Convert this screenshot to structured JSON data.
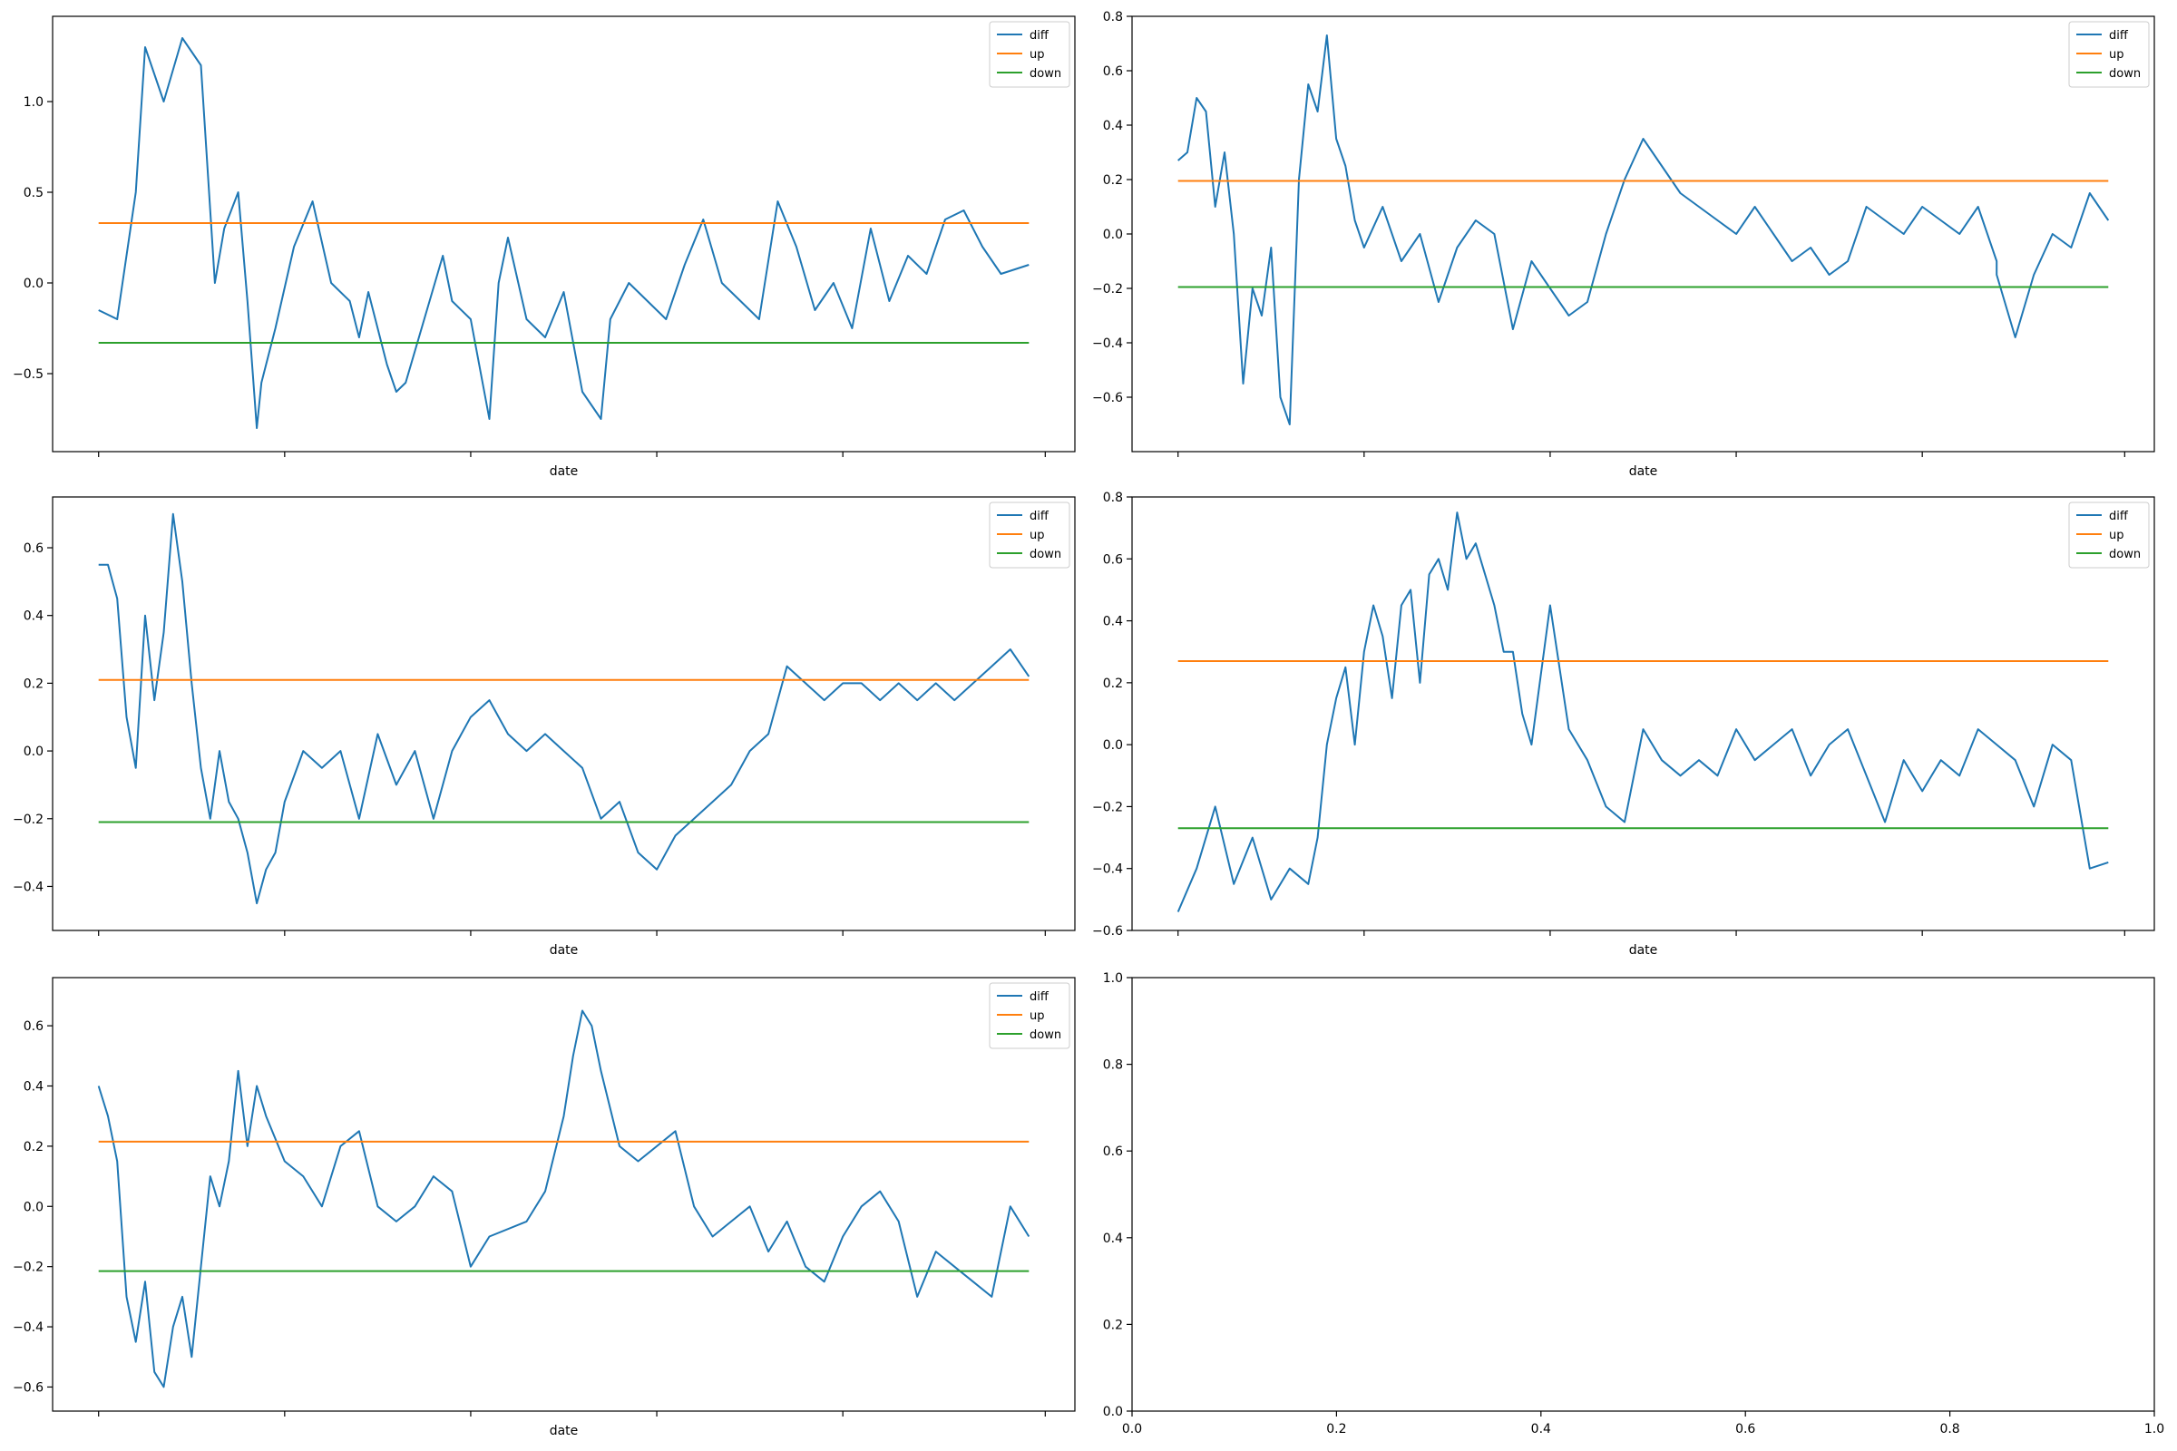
{
  "colors": {
    "diff": "#1f77b4",
    "up": "#ff7f0e",
    "down": "#2ca02c",
    "axis": "#000000",
    "background": "#ffffff"
  },
  "chart_data": [
    {
      "type": "line",
      "xlabel": "date",
      "ylabel": "",
      "ylim": [
        -0.93,
        1.47
      ],
      "yticks": [
        -0.5,
        0.0,
        0.5,
        1.0
      ],
      "ytick_labels": [
        "−0.5",
        "0.0",
        "0.5",
        "1.0"
      ],
      "xtick_count": 6,
      "legend": {
        "position": "upper right",
        "entries": [
          "diff",
          "up",
          "down"
        ]
      },
      "up": 0.33,
      "down": -0.33,
      "series": [
        {
          "name": "diff",
          "x": [
            0,
            0.02,
            0.04,
            0.05,
            0.07,
            0.09,
            0.11,
            0.125,
            0.135,
            0.15,
            0.16,
            0.17,
            0.175,
            0.19,
            0.21,
            0.23,
            0.25,
            0.27,
            0.28,
            0.29,
            0.31,
            0.32,
            0.33,
            0.35,
            0.37,
            0.38,
            0.4,
            0.42,
            0.43,
            0.44,
            0.46,
            0.48,
            0.5,
            0.52,
            0.54,
            0.55,
            0.57,
            0.59,
            0.61,
            0.63,
            0.65,
            0.67,
            0.69,
            0.71,
            0.73,
            0.75,
            0.77,
            0.79,
            0.81,
            0.83,
            0.85,
            0.87,
            0.89,
            0.91,
            0.93,
            0.95,
            0.97,
            1.0
          ],
          "values": [
            -0.15,
            -0.2,
            0.5,
            1.3,
            1.0,
            1.35,
            1.2,
            0.0,
            0.3,
            0.5,
            -0.1,
            -0.8,
            -0.55,
            -0.25,
            0.2,
            0.45,
            0.0,
            -0.1,
            -0.3,
            -0.05,
            -0.45,
            -0.6,
            -0.55,
            -0.2,
            0.15,
            -0.1,
            -0.2,
            -0.75,
            0.0,
            0.25,
            -0.2,
            -0.3,
            -0.05,
            -0.6,
            -0.75,
            -0.2,
            0.0,
            -0.1,
            -0.2,
            0.1,
            0.35,
            0.0,
            -0.1,
            -0.2,
            0.45,
            0.2,
            -0.15,
            0.0,
            -0.25,
            0.3,
            -0.1,
            0.15,
            0.05,
            0.35,
            0.4,
            0.2,
            0.05,
            0.1
          ]
        },
        {
          "name": "up",
          "values": [
            0.33,
            0.33
          ]
        },
        {
          "name": "down",
          "values": [
            -0.33,
            -0.33
          ]
        }
      ]
    },
    {
      "type": "line",
      "xlabel": "date",
      "ylabel": "",
      "ylim": [
        -0.8,
        0.8
      ],
      "yticks": [
        -0.6,
        -0.4,
        -0.2,
        0.0,
        0.2,
        0.4,
        0.6,
        0.8
      ],
      "ytick_labels": [
        "−0.6",
        "−0.4",
        "−0.2",
        "0.0",
        "0.2",
        "0.4",
        "0.6",
        "0.8"
      ],
      "xtick_count": 6,
      "legend": {
        "position": "upper right",
        "entries": [
          "diff",
          "up",
          "down"
        ]
      },
      "up": 0.195,
      "down": -0.195,
      "series": [
        {
          "name": "diff",
          "x": [
            0,
            0.01,
            0.02,
            0.03,
            0.04,
            0.05,
            0.06,
            0.07,
            0.08,
            0.09,
            0.1,
            0.11,
            0.12,
            0.13,
            0.14,
            0.15,
            0.16,
            0.17,
            0.18,
            0.19,
            0.2,
            0.22,
            0.24,
            0.26,
            0.28,
            0.3,
            0.32,
            0.34,
            0.36,
            0.38,
            0.4,
            0.42,
            0.44,
            0.46,
            0.48,
            0.5,
            0.52,
            0.54,
            0.56,
            0.58,
            0.6,
            0.62,
            0.64,
            0.66,
            0.68,
            0.7,
            0.72,
            0.74,
            0.76,
            0.78,
            0.8,
            0.82,
            0.84,
            0.86,
            0.88,
            0.88,
            0.9,
            0.92,
            0.94,
            0.96,
            0.98,
            1.0
          ],
          "values": [
            0.27,
            0.3,
            0.5,
            0.45,
            0.1,
            0.3,
            0.0,
            -0.55,
            -0.2,
            -0.3,
            -0.05,
            -0.6,
            -0.7,
            0.2,
            0.55,
            0.45,
            0.73,
            0.35,
            0.25,
            0.05,
            -0.05,
            0.1,
            -0.1,
            0.0,
            -0.25,
            -0.05,
            0.05,
            0.0,
            -0.35,
            -0.1,
            -0.2,
            -0.3,
            -0.25,
            0.0,
            0.2,
            0.35,
            0.25,
            0.15,
            0.1,
            0.05,
            0.0,
            0.1,
            0.0,
            -0.1,
            -0.05,
            -0.15,
            -0.1,
            0.1,
            0.05,
            0.0,
            0.1,
            0.05,
            0.0,
            0.1,
            -0.1,
            -0.15,
            -0.38,
            -0.15,
            0.0,
            -0.05,
            0.15,
            0.05
          ]
        },
        {
          "name": "up",
          "values": [
            0.195,
            0.195
          ]
        },
        {
          "name": "down",
          "values": [
            -0.195,
            -0.195
          ]
        }
      ]
    },
    {
      "type": "line",
      "xlabel": "date",
      "ylabel": "",
      "ylim": [
        -0.53,
        0.75
      ],
      "yticks": [
        -0.4,
        -0.2,
        0.0,
        0.2,
        0.4,
        0.6
      ],
      "ytick_labels": [
        "−0.4",
        "−0.2",
        "0.0",
        "0.2",
        "0.4",
        "0.6"
      ],
      "xtick_count": 6,
      "legend": {
        "position": "upper right",
        "entries": [
          "diff",
          "up",
          "down"
        ]
      },
      "up": 0.21,
      "down": -0.21,
      "series": [
        {
          "name": "diff",
          "x": [
            0,
            0.01,
            0.02,
            0.03,
            0.04,
            0.05,
            0.06,
            0.07,
            0.08,
            0.09,
            0.1,
            0.11,
            0.12,
            0.13,
            0.14,
            0.15,
            0.16,
            0.17,
            0.18,
            0.19,
            0.2,
            0.22,
            0.24,
            0.26,
            0.28,
            0.3,
            0.32,
            0.34,
            0.36,
            0.38,
            0.4,
            0.42,
            0.44,
            0.46,
            0.48,
            0.5,
            0.52,
            0.54,
            0.56,
            0.58,
            0.6,
            0.62,
            0.64,
            0.66,
            0.68,
            0.7,
            0.72,
            0.74,
            0.76,
            0.78,
            0.8,
            0.82,
            0.84,
            0.86,
            0.88,
            0.9,
            0.92,
            0.94,
            0.96,
            0.98,
            1.0
          ],
          "values": [
            0.55,
            0.55,
            0.45,
            0.1,
            -0.05,
            0.4,
            0.15,
            0.35,
            0.7,
            0.5,
            0.2,
            -0.05,
            -0.2,
            0.0,
            -0.15,
            -0.2,
            -0.3,
            -0.45,
            -0.35,
            -0.3,
            -0.15,
            0.0,
            -0.05,
            0.0,
            -0.2,
            0.05,
            -0.1,
            0.0,
            -0.2,
            0.0,
            0.1,
            0.15,
            0.05,
            0.0,
            0.05,
            0.0,
            -0.05,
            -0.2,
            -0.15,
            -0.3,
            -0.35,
            -0.25,
            -0.2,
            -0.15,
            -0.1,
            0.0,
            0.05,
            0.25,
            0.2,
            0.15,
            0.2,
            0.2,
            0.15,
            0.2,
            0.15,
            0.2,
            0.15,
            0.2,
            0.25,
            0.3,
            0.22
          ]
        },
        {
          "name": "up",
          "values": [
            0.21,
            0.21
          ]
        },
        {
          "name": "down",
          "values": [
            -0.21,
            -0.21
          ]
        }
      ]
    },
    {
      "type": "line",
      "xlabel": "date",
      "ylabel": "",
      "ylim": [
        -0.6,
        0.8
      ],
      "yticks": [
        -0.6,
        -0.4,
        -0.2,
        0.0,
        0.2,
        0.4,
        0.6,
        0.8
      ],
      "ytick_labels": [
        "−0.6",
        "−0.4",
        "−0.2",
        "0.0",
        "0.2",
        "0.4",
        "0.6",
        "0.8"
      ],
      "xtick_count": 6,
      "legend": {
        "position": "upper right",
        "entries": [
          "diff",
          "up",
          "down"
        ]
      },
      "up": 0.27,
      "down": -0.27,
      "series": [
        {
          "name": "diff",
          "x": [
            0,
            0.02,
            0.04,
            0.06,
            0.08,
            0.1,
            0.12,
            0.14,
            0.15,
            0.16,
            0.17,
            0.18,
            0.19,
            0.2,
            0.21,
            0.22,
            0.23,
            0.24,
            0.25,
            0.26,
            0.27,
            0.28,
            0.29,
            0.3,
            0.31,
            0.32,
            0.33,
            0.34,
            0.35,
            0.36,
            0.37,
            0.38,
            0.4,
            0.42,
            0.44,
            0.46,
            0.48,
            0.5,
            0.52,
            0.54,
            0.56,
            0.58,
            0.6,
            0.62,
            0.64,
            0.66,
            0.68,
            0.7,
            0.72,
            0.74,
            0.76,
            0.78,
            0.8,
            0.82,
            0.84,
            0.86,
            0.88,
            0.9,
            0.92,
            0.94,
            0.96,
            0.98,
            1.0
          ],
          "values": [
            -0.54,
            -0.4,
            -0.2,
            -0.45,
            -0.3,
            -0.5,
            -0.4,
            -0.45,
            -0.3,
            0.0,
            0.15,
            0.25,
            0.0,
            0.3,
            0.45,
            0.35,
            0.15,
            0.45,
            0.5,
            0.2,
            0.55,
            0.6,
            0.5,
            0.75,
            0.6,
            0.65,
            0.55,
            0.45,
            0.3,
            0.3,
            0.1,
            0.0,
            0.45,
            0.05,
            -0.05,
            -0.2,
            -0.25,
            0.05,
            -0.05,
            -0.1,
            -0.05,
            -0.1,
            0.05,
            -0.05,
            0.0,
            0.05,
            -0.1,
            0.0,
            0.05,
            -0.1,
            -0.25,
            -0.05,
            -0.15,
            -0.05,
            -0.1,
            0.05,
            0.0,
            -0.05,
            -0.2,
            0.0,
            -0.05,
            -0.4,
            -0.38
          ]
        },
        {
          "name": "up",
          "values": [
            0.27,
            0.27
          ]
        },
        {
          "name": "down",
          "values": [
            -0.27,
            -0.27
          ]
        }
      ]
    },
    {
      "type": "line",
      "xlabel": "date",
      "ylabel": "",
      "ylim": [
        -0.68,
        0.76
      ],
      "yticks": [
        -0.6,
        -0.4,
        -0.2,
        0.0,
        0.2,
        0.4,
        0.6
      ],
      "ytick_labels": [
        "−0.6",
        "−0.4",
        "−0.2",
        "0.0",
        "0.2",
        "0.4",
        "0.6"
      ],
      "xtick_count": 6,
      "legend": {
        "position": "upper right",
        "entries": [
          "diff",
          "up",
          "down"
        ]
      },
      "up": 0.215,
      "down": -0.215,
      "series": [
        {
          "name": "diff",
          "x": [
            0,
            0.01,
            0.02,
            0.03,
            0.04,
            0.05,
            0.06,
            0.07,
            0.08,
            0.09,
            0.1,
            0.11,
            0.12,
            0.13,
            0.14,
            0.15,
            0.16,
            0.17,
            0.18,
            0.2,
            0.22,
            0.24,
            0.26,
            0.28,
            0.3,
            0.32,
            0.34,
            0.36,
            0.38,
            0.4,
            0.42,
            0.46,
            0.48,
            0.5,
            0.51,
            0.52,
            0.53,
            0.54,
            0.56,
            0.58,
            0.6,
            0.62,
            0.64,
            0.66,
            0.68,
            0.7,
            0.72,
            0.74,
            0.76,
            0.78,
            0.8,
            0.82,
            0.84,
            0.86,
            0.88,
            0.9,
            0.92,
            0.94,
            0.96,
            0.98,
            1.0
          ],
          "values": [
            0.4,
            0.3,
            0.15,
            -0.3,
            -0.45,
            -0.25,
            -0.55,
            -0.6,
            -0.4,
            -0.3,
            -0.5,
            -0.2,
            0.1,
            0.0,
            0.15,
            0.45,
            0.2,
            0.4,
            0.3,
            0.15,
            0.1,
            0.0,
            0.2,
            0.25,
            0.0,
            -0.05,
            0.0,
            0.1,
            0.05,
            -0.2,
            -0.1,
            -0.05,
            0.05,
            0.3,
            0.5,
            0.65,
            0.6,
            0.45,
            0.2,
            0.15,
            0.2,
            0.25,
            0.0,
            -0.1,
            -0.05,
            0.0,
            -0.15,
            -0.05,
            -0.2,
            -0.25,
            -0.1,
            0.0,
            0.05,
            -0.05,
            -0.3,
            -0.15,
            -0.2,
            -0.25,
            -0.3,
            0.0,
            -0.1
          ]
        },
        {
          "name": "up",
          "values": [
            0.215,
            0.215
          ]
        },
        {
          "name": "down",
          "values": [
            -0.215,
            -0.215
          ]
        }
      ]
    },
    {
      "type": "line",
      "xlabel": "",
      "ylabel": "",
      "xlim": [
        0.0,
        1.0
      ],
      "ylim": [
        0.0,
        1.0
      ],
      "xticks": [
        0.0,
        0.2,
        0.4,
        0.6,
        0.8,
        1.0
      ],
      "xtick_labels": [
        "0.0",
        "0.2",
        "0.4",
        "0.6",
        "0.8",
        "1.0"
      ],
      "yticks": [
        0.0,
        0.2,
        0.4,
        0.6,
        0.8,
        1.0
      ],
      "ytick_labels": [
        "0.0",
        "0.2",
        "0.4",
        "0.6",
        "0.8",
        "1.0"
      ],
      "series": []
    }
  ]
}
